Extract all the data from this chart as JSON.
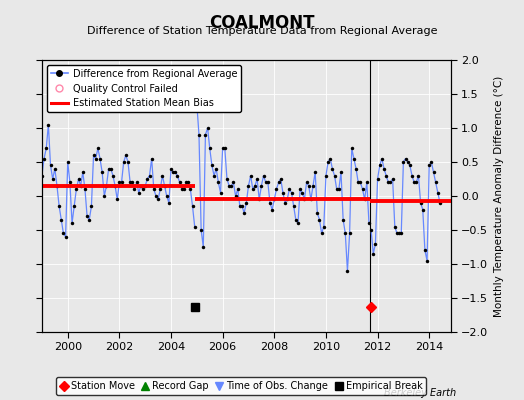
{
  "title": "COALMONT",
  "subtitle": "Difference of Station Temperature Data from Regional Average",
  "ylabel": "Monthly Temperature Anomaly Difference (°C)",
  "xlabel_bottom": "Berkeley Earth",
  "ylim": [
    -2,
    2
  ],
  "xlim": [
    1999.0,
    2014.83
  ],
  "xticks": [
    2000,
    2002,
    2004,
    2006,
    2008,
    2010,
    2012,
    2014
  ],
  "yticks": [
    -2,
    -1.5,
    -1,
    -0.5,
    0,
    0.5,
    1,
    1.5,
    2
  ],
  "background_color": "#e8e8e8",
  "plot_background": "#e8e8e8",
  "line_color": "#6688ff",
  "marker_color": "#000000",
  "bias_color": "#ff0000",
  "segments": [
    {
      "x_start": 1999.0,
      "x_end": 2004.92,
      "bias": 0.15
    },
    {
      "x_start": 2004.92,
      "x_end": 2011.7,
      "bias": -0.05
    },
    {
      "x_start": 2011.7,
      "x_end": 2014.83,
      "bias": -0.07
    }
  ],
  "break_x": 2004.92,
  "break_y": -1.63,
  "station_move_x": 2011.75,
  "station_move_y": -1.63,
  "vertical_line_x": 2011.7,
  "data_x": [
    1999.0,
    1999.083,
    1999.167,
    1999.25,
    1999.333,
    1999.417,
    1999.5,
    1999.583,
    1999.667,
    1999.75,
    1999.833,
    1999.917,
    2000.0,
    2000.083,
    2000.167,
    2000.25,
    2000.333,
    2000.417,
    2000.5,
    2000.583,
    2000.667,
    2000.75,
    2000.833,
    2000.917,
    2001.0,
    2001.083,
    2001.167,
    2001.25,
    2001.333,
    2001.417,
    2001.5,
    2001.583,
    2001.667,
    2001.75,
    2001.833,
    2001.917,
    2002.0,
    2002.083,
    2002.167,
    2002.25,
    2002.333,
    2002.417,
    2002.5,
    2002.583,
    2002.667,
    2002.75,
    2002.833,
    2002.917,
    2003.0,
    2003.083,
    2003.167,
    2003.25,
    2003.333,
    2003.417,
    2003.5,
    2003.583,
    2003.667,
    2003.75,
    2003.833,
    2003.917,
    2004.0,
    2004.083,
    2004.167,
    2004.25,
    2004.333,
    2004.417,
    2004.5,
    2004.583,
    2004.667,
    2004.75,
    2004.833,
    2004.917,
    2005.0,
    2005.083,
    2005.167,
    2005.25,
    2005.333,
    2005.417,
    2005.5,
    2005.583,
    2005.667,
    2005.75,
    2005.833,
    2005.917,
    2006.0,
    2006.083,
    2006.167,
    2006.25,
    2006.333,
    2006.417,
    2006.5,
    2006.583,
    2006.667,
    2006.75,
    2006.833,
    2006.917,
    2007.0,
    2007.083,
    2007.167,
    2007.25,
    2007.333,
    2007.417,
    2007.5,
    2007.583,
    2007.667,
    2007.75,
    2007.833,
    2007.917,
    2008.0,
    2008.083,
    2008.167,
    2008.25,
    2008.333,
    2008.417,
    2008.5,
    2008.583,
    2008.667,
    2008.75,
    2008.833,
    2008.917,
    2009.0,
    2009.083,
    2009.167,
    2009.25,
    2009.333,
    2009.417,
    2009.5,
    2009.583,
    2009.667,
    2009.75,
    2009.833,
    2009.917,
    2010.0,
    2010.083,
    2010.167,
    2010.25,
    2010.333,
    2010.417,
    2010.5,
    2010.583,
    2010.667,
    2010.75,
    2010.833,
    2010.917,
    2011.0,
    2011.083,
    2011.167,
    2011.25,
    2011.333,
    2011.417,
    2011.5,
    2011.583,
    2011.667,
    2011.75,
    2011.833,
    2011.917,
    2012.0,
    2012.083,
    2012.167,
    2012.25,
    2012.333,
    2012.417,
    2012.5,
    2012.583,
    2012.667,
    2012.75,
    2012.833,
    2012.917,
    2013.0,
    2013.083,
    2013.167,
    2013.25,
    2013.333,
    2013.417,
    2013.5,
    2013.583,
    2013.667,
    2013.75,
    2013.833,
    2013.917,
    2014.0,
    2014.083,
    2014.167,
    2014.25,
    2014.333,
    2014.417
  ],
  "data_y": [
    0.3,
    0.55,
    0.7,
    1.05,
    0.45,
    0.25,
    0.4,
    0.15,
    -0.15,
    -0.35,
    -0.55,
    -0.6,
    0.5,
    0.2,
    -0.4,
    -0.15,
    0.1,
    0.25,
    0.15,
    0.35,
    0.1,
    -0.3,
    -0.35,
    -0.15,
    0.6,
    0.55,
    0.7,
    0.55,
    0.35,
    0.0,
    0.15,
    0.4,
    0.4,
    0.3,
    0.15,
    -0.05,
    0.2,
    0.2,
    0.5,
    0.6,
    0.5,
    0.2,
    0.2,
    0.1,
    0.2,
    0.05,
    0.15,
    0.1,
    0.15,
    0.25,
    0.3,
    0.55,
    0.1,
    0.0,
    -0.05,
    0.1,
    0.3,
    0.15,
    0.0,
    -0.1,
    0.4,
    0.35,
    0.35,
    0.3,
    0.2,
    0.1,
    0.1,
    0.2,
    0.2,
    0.1,
    -0.15,
    -0.45,
    1.35,
    0.9,
    -0.5,
    -0.75,
    0.9,
    1.0,
    0.7,
    0.45,
    0.3,
    0.4,
    0.2,
    0.05,
    0.7,
    0.7,
    0.25,
    0.15,
    0.15,
    0.2,
    0.0,
    0.1,
    -0.15,
    -0.15,
    -0.25,
    -0.1,
    0.15,
    0.3,
    0.1,
    0.15,
    0.25,
    -0.05,
    0.15,
    0.3,
    0.2,
    0.2,
    -0.1,
    -0.2,
    -0.05,
    0.1,
    0.2,
    0.25,
    0.05,
    -0.1,
    -0.05,
    0.1,
    0.05,
    -0.15,
    -0.35,
    -0.4,
    0.1,
    0.05,
    -0.05,
    0.2,
    0.15,
    -0.05,
    0.15,
    0.35,
    -0.25,
    -0.35,
    -0.55,
    -0.45,
    0.3,
    0.5,
    0.55,
    0.4,
    0.3,
    0.1,
    0.1,
    0.35,
    -0.35,
    -0.55,
    -1.1,
    -0.55,
    0.7,
    0.55,
    0.4,
    0.2,
    0.2,
    0.1,
    -0.05,
    0.2,
    -0.4,
    -0.5,
    -0.85,
    -0.7,
    0.25,
    0.45,
    0.55,
    0.4,
    0.3,
    0.2,
    0.2,
    0.25,
    -0.45,
    -0.55,
    -0.55,
    -0.55,
    0.5,
    0.55,
    0.5,
    0.45,
    0.3,
    0.2,
    0.2,
    0.3,
    -0.1,
    -0.2,
    -0.8,
    -0.95,
    0.45,
    0.5,
    0.35,
    0.2,
    0.05,
    -0.1
  ]
}
